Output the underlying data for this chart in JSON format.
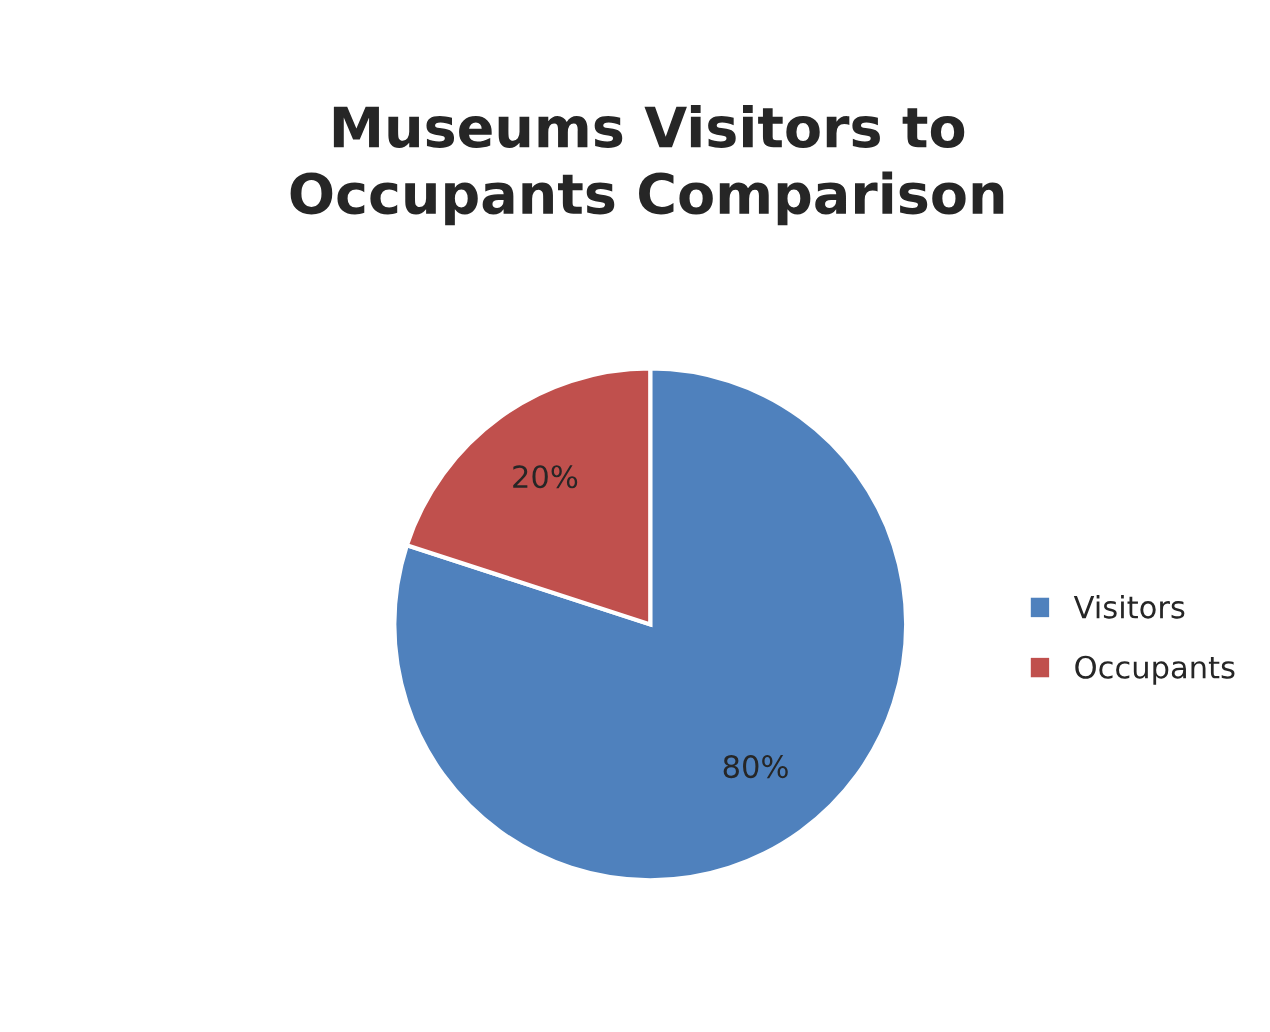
{
  "chart_data": {
    "type": "pie",
    "title": "Museums Visitors to\nOccupants Comparison",
    "categories": [
      "Visitors",
      "Occupants"
    ],
    "values": [
      80,
      20
    ],
    "colors": [
      "#4f81bd",
      "#c0504d"
    ],
    "value_labels": [
      "80%",
      "20%"
    ],
    "legend": "right"
  }
}
